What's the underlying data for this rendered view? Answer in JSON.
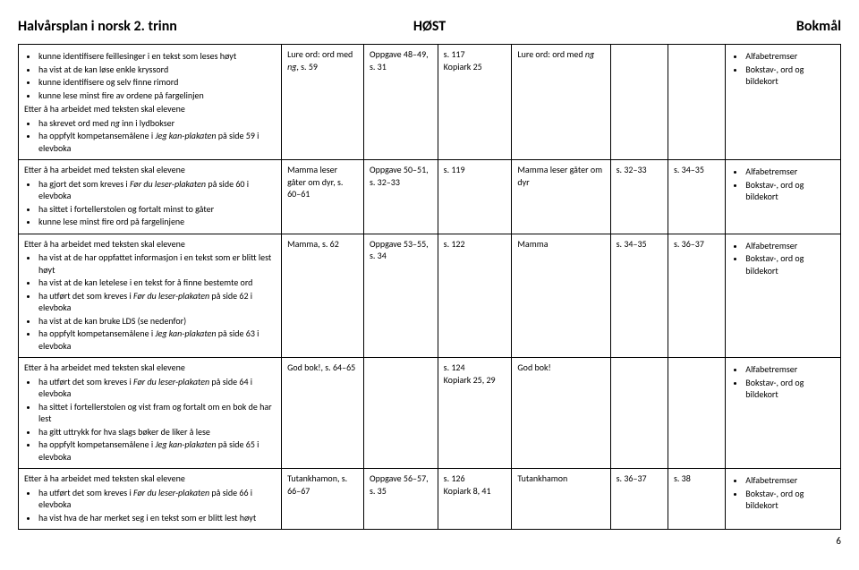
{
  "header": {
    "left": "Halvårsplan i norsk 2. trinn",
    "center": "HØST",
    "right": "Bokmål"
  },
  "rows": [
    {
      "col1": {
        "intro_bullets": [
          "kunne identifisere feillesinger i en tekst som leses høyt",
          "ha vist at de kan løse enkle kryssord",
          "kunne identifisere og selv finne rimord",
          "kunne lese minst fire av ordene på fargelinjen"
        ],
        "lead": "Etter å ha arbeidet med teksten skal elevene",
        "bullets": [
          {
            "pre": "ha skrevet ord med ",
            "ital": "ng",
            "post": " inn i lydbokser"
          },
          {
            "pre": "ha oppfylt kompetansemålene i ",
            "ital": "Jeg kan-plakaten",
            "post": " på side 59 i elevboka"
          }
        ]
      },
      "col2": {
        "parts": [
          "Lure ord: ord med ",
          "ng",
          ", s. 59"
        ]
      },
      "col3": "Oppgave 48–49, s. 31",
      "col4": "s. 117\nKopiark 25",
      "col5": {
        "parts": [
          "Lure ord: ord med ",
          "ng"
        ]
      },
      "col6": "",
      "col7": "",
      "col8_bullets": [
        "Alfabetremser",
        "Bokstav-, ord og bildekort"
      ]
    },
    {
      "col1": {
        "lead": "Etter å ha arbeidet med teksten skal elevene",
        "bullets": [
          {
            "pre": "ha gjort det som kreves i ",
            "ital": "Før du leser-plakaten",
            "post": " på side 60 i elevboka"
          },
          {
            "pre": "ha sittet i fortellerstolen og fortalt minst to gåter",
            "ital": "",
            "post": ""
          },
          {
            "pre": "kunne lese minst fire ord på fargelinjene",
            "ital": "",
            "post": ""
          }
        ]
      },
      "col2": {
        "parts": [
          "Mamma leser gåter om dyr, s. 60–61"
        ]
      },
      "col3": "Oppgave 50–51, s. 32–33",
      "col4": "s. 119",
      "col5": {
        "parts": [
          "Mamma leser gåter om dyr"
        ]
      },
      "col6": "s. 32–33",
      "col7": "s. 34–35",
      "col8_bullets": [
        "Alfabetremser",
        "Bokstav-, ord og bildekort"
      ]
    },
    {
      "col1": {
        "lead": "Etter å ha arbeidet med teksten skal elevene",
        "bullets": [
          {
            "pre": "ha vist at de har oppfattet informasjon i en tekst som er blitt lest høyt",
            "ital": "",
            "post": ""
          },
          {
            "pre": "ha vist at de kan letelese i en tekst for å finne bestemte ord",
            "ital": "",
            "post": ""
          },
          {
            "pre": "ha utført det som kreves i ",
            "ital": "Før du leser-plakaten",
            "post": " på side 62 i elevboka"
          },
          {
            "pre": "ha vist at de kan bruke LDS (se nedenfor)",
            "ital": "",
            "post": ""
          },
          {
            "pre": "ha oppfylt kompetansemålene i ",
            "ital": "Jeg kan-plakaten",
            "post": " på side 63 i elevboka"
          }
        ]
      },
      "col2": {
        "parts": [
          "Mamma, s. 62"
        ]
      },
      "col3": "Oppgave 53–55, s. 34",
      "col4": "s. 122",
      "col5": {
        "parts": [
          "Mamma"
        ]
      },
      "col6": "s. 34–35",
      "col7": "s. 36–37",
      "col8_bullets": [
        "Alfabetremser",
        "Bokstav-, ord og bildekort"
      ]
    },
    {
      "col1": {
        "lead": "Etter å ha arbeidet med teksten skal elevene",
        "bullets": [
          {
            "pre": "ha utført det som kreves i ",
            "ital": "Før du leser-plakaten",
            "post": " på side 64 i elevboka"
          },
          {
            "pre": "ha sittet i fortellerstolen og vist fram og fortalt om en bok de har lest",
            "ital": "",
            "post": ""
          },
          {
            "pre": "ha gitt uttrykk for hva slags bøker de liker å lese",
            "ital": "",
            "post": ""
          },
          {
            "pre": "ha oppfylt kompetansemålene i ",
            "ital": "Jeg kan-plakaten",
            "post": " på side 65 i elevboka"
          }
        ]
      },
      "col2": {
        "parts": [
          "God bok!, s. 64–65"
        ]
      },
      "col3": "",
      "col4": "s. 124\nKopiark 25, 29",
      "col5": {
        "parts": [
          "God bok!"
        ]
      },
      "col6": "",
      "col7": "",
      "col8_bullets": [
        "Alfabetremser",
        "Bokstav-, ord og bildekort"
      ]
    },
    {
      "col1": {
        "lead": "Etter å ha arbeidet med teksten skal elevene",
        "bullets": [
          {
            "pre": "ha utført det som kreves i ",
            "ital": "Før du leser-plakaten",
            "post": " på side 66 i elevboka"
          },
          {
            "pre": "ha vist hva de har merket seg i en tekst som er blitt lest høyt",
            "ital": "",
            "post": ""
          }
        ]
      },
      "col2": {
        "parts": [
          "Tutankhamon, s. 66–67"
        ]
      },
      "col3": "Oppgave 56–57, s. 35",
      "col4": "s. 126\nKopiark 8, 41",
      "col5": {
        "parts": [
          "Tutankhamon"
        ]
      },
      "col6": "s. 36–37",
      "col7": "s. 38",
      "col8_bullets": [
        "Alfabetremser",
        "Bokstav-, ord og bildekort"
      ]
    }
  ],
  "page_number": "6"
}
